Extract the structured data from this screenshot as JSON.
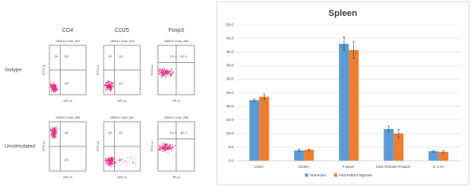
{
  "flow_panel": {
    "columns": [
      "CD4",
      "CD25",
      "Foxp3"
    ],
    "rows": [
      "Isotype",
      "Unstimulated"
    ],
    "plots": [
      [
        {
          "tube": "180511-Tube_051",
          "quadrants": [
            "Q1",
            "Q2",
            "Q4"
          ],
          "x_axis": "APC-A",
          "y_axis": "FITC-A"
        },
        {
          "tube": "180511-Tube_052",
          "quadrants": [
            "Q1",
            "Q2",
            "Q4"
          ],
          "x_axis": "APC-A",
          "y_axis": "FITC-A"
        },
        {
          "tube": "180511-Tube_053",
          "quadrants": [
            "Q1-1",
            "Q2-1"
          ],
          "x_axis": "PE-A",
          "y_axis": "FITC-A"
        }
      ],
      [
        {
          "tube": "180511-Tube_056",
          "quadrants": [
            "Q1",
            "Q2",
            "Q4"
          ],
          "x_axis": "APC-A",
          "y_axis": "FITC-A"
        },
        {
          "tube": "180511-Tube_057",
          "quadrants": [
            "Q1",
            "Q2",
            "Q4"
          ],
          "x_axis": "APC-A",
          "y_axis": "FITC-A"
        },
        {
          "tube": "180511-Tube_058",
          "quadrants": [
            "Q1-1",
            "Q2-1"
          ],
          "x_axis": "PE-A",
          "y_axis": "FITC-A"
        }
      ]
    ]
  },
  "chart_data": {
    "type": "bar",
    "title": "Spleen",
    "categories": [
      "CD4+",
      "CD25+",
      "Foxp3+",
      "CD4+/CD25+/Foxp3+",
      "IL-17A"
    ],
    "series": [
      {
        "name": "Normoxia",
        "color": "#5b9bd5",
        "values": [
          22.3,
          3.8,
          43.0,
          11.7,
          3.5
        ],
        "errors": [
          0.5,
          0.5,
          2.5,
          1.0,
          0.3
        ]
      },
      {
        "name": "Intermittent hypoxia",
        "color": "#ed7d31",
        "values": [
          23.5,
          4.0,
          40.7,
          10.0,
          3.3
        ],
        "errors": [
          1.0,
          0.3,
          3.0,
          1.5,
          0.5
        ]
      }
    ],
    "ylim": [
      0,
      50
    ],
    "yticks": [
      {
        "value": 0,
        "label": "0.0"
      },
      {
        "value": 5,
        "label": "5.0"
      },
      {
        "value": 10,
        "label": "10.0"
      },
      {
        "value": 15,
        "label": "15.0"
      },
      {
        "value": 20,
        "label": "20.0"
      },
      {
        "value": 25,
        "label": "25.0"
      },
      {
        "value": 30,
        "label": "30.0"
      },
      {
        "value": 35,
        "label": "35.0"
      },
      {
        "value": 40,
        "label": "40.0"
      },
      {
        "value": 45,
        "label": "45.0"
      },
      {
        "value": 50,
        "label": "50.0"
      }
    ],
    "grid": true,
    "legend": "bottom"
  }
}
